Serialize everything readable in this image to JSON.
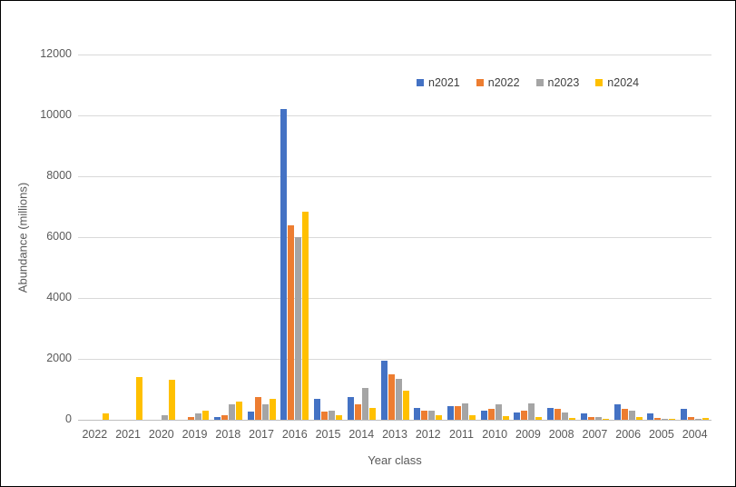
{
  "chart_data": {
    "type": "bar",
    "title": "",
    "xlabel": "Year class",
    "ylabel": "Abundance (millions)",
    "ylim": [
      0,
      12000
    ],
    "ytick_step": 2000,
    "grid": true,
    "legend_position": "top-center-inside",
    "categories": [
      "2022",
      "2021",
      "2020",
      "2019",
      "2018",
      "2017",
      "2016",
      "2015",
      "2014",
      "2013",
      "2012",
      "2011",
      "2010",
      "2009",
      "2008",
      "2007",
      "2006",
      "2005",
      "2004"
    ],
    "series": [
      {
        "name": "n2021",
        "color": "#4472C4",
        "values": [
          0,
          0,
          0,
          0,
          100,
          280,
          10200,
          700,
          750,
          1950,
          400,
          450,
          300,
          230,
          400,
          200,
          500,
          200,
          350
        ]
      },
      {
        "name": "n2022",
        "color": "#ED7D31",
        "values": [
          0,
          0,
          0,
          100,
          150,
          750,
          6400,
          280,
          500,
          1500,
          300,
          450,
          350,
          300,
          350,
          100,
          350,
          50,
          100
        ]
      },
      {
        "name": "n2023",
        "color": "#A5A5A5",
        "values": [
          0,
          0,
          150,
          200,
          500,
          500,
          6000,
          300,
          1050,
          1350,
          300,
          550,
          500,
          550,
          250,
          100,
          300,
          20,
          20
        ]
      },
      {
        "name": "n2024",
        "color": "#FFC000",
        "values": [
          200,
          1400,
          1300,
          300,
          600,
          700,
          6850,
          150,
          400,
          950,
          150,
          150,
          130,
          100,
          50,
          30,
          100,
          20,
          50
        ]
      }
    ]
  },
  "colors": {
    "grid": "#D9D9D9",
    "axis_line": "#BFBFBF",
    "text": "#595959",
    "border": "#000000",
    "background": "#FFFFFF"
  }
}
